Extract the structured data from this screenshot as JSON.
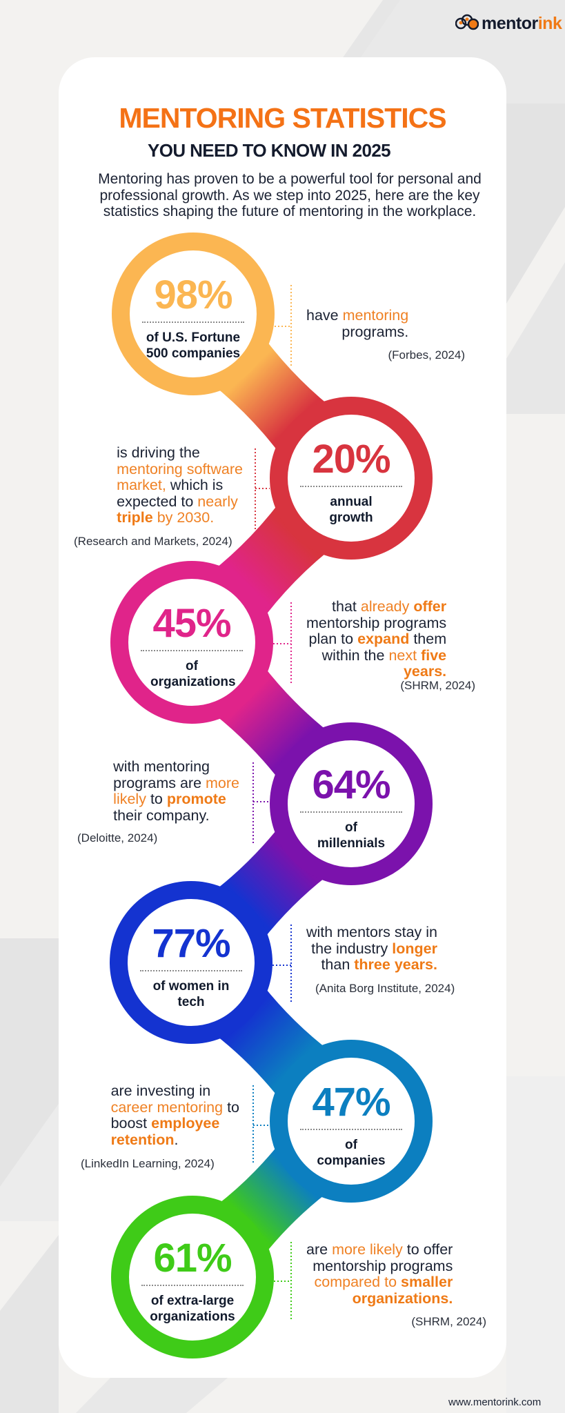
{
  "logo": {
    "text_main": "mentor",
    "text_accent": "ink"
  },
  "header": {
    "title": "MENTORING STATISTICS",
    "subtitle": "YOU NEED TO KNOW IN 2025",
    "intro": "Mentoring has proven to be a powerful tool for personal and professional growth. As we step into 2025, here are the key statistics shaping the future of mentoring in the workplace."
  },
  "colors": {
    "highlight": "#ef7a16",
    "text": "#141b2d",
    "title": "#f47216"
  },
  "stats": [
    {
      "percent": "98%",
      "label": "of U.S. Fortune 500 companies",
      "color": "#fbb652",
      "text_lines": [
        [
          {
            "t": "have "
          },
          {
            "t": "mentoring",
            "s": "o"
          }
        ],
        [
          {
            "t": "programs."
          }
        ]
      ],
      "source": "(Forbes, 2024)"
    },
    {
      "percent": "20%",
      "label": "annual growth",
      "color": "#d8343f",
      "text_lines": [
        [
          {
            "t": "is driving the"
          }
        ],
        [
          {
            "t": "mentoring software",
            "s": "o"
          }
        ],
        [
          {
            "t": "market,",
            "s": "o"
          },
          {
            "t": " which is"
          }
        ],
        [
          {
            "t": "expected to "
          },
          {
            "t": "nearly",
            "s": "o"
          }
        ],
        [
          {
            "t": "triple",
            "s": "ob"
          },
          {
            "t": " by 2030.",
            "s": "o"
          }
        ]
      ],
      "source": "(Research and Markets, 2024)"
    },
    {
      "percent": "45%",
      "label": "of organizations",
      "color": "#e0248a",
      "text_lines": [
        [
          {
            "t": "that "
          },
          {
            "t": "already",
            "s": "o"
          },
          {
            "t": " "
          },
          {
            "t": "offer",
            "s": "ob"
          }
        ],
        [
          {
            "t": "mentorship programs"
          }
        ],
        [
          {
            "t": "plan to "
          },
          {
            "t": "expand",
            "s": "ob"
          },
          {
            "t": " them"
          }
        ],
        [
          {
            "t": "within the "
          },
          {
            "t": "next",
            "s": "o"
          },
          {
            "t": " "
          },
          {
            "t": "five",
            "s": "ob"
          }
        ],
        [
          {
            "t": "years.",
            "s": "ob"
          }
        ]
      ],
      "source": "(SHRM, 2024)"
    },
    {
      "percent": "64%",
      "label": "of millennials",
      "color": "#7b12ac",
      "text_lines": [
        [
          {
            "t": "with mentoring"
          }
        ],
        [
          {
            "t": "programs are "
          },
          {
            "t": "more",
            "s": "o"
          }
        ],
        [
          {
            "t": "likely",
            "s": "o"
          },
          {
            "t": " to "
          },
          {
            "t": "promote",
            "s": "ob"
          }
        ],
        [
          {
            "t": "their company."
          }
        ]
      ],
      "source": "(Deloitte, 2024)"
    },
    {
      "percent": "77%",
      "label": "of women in tech",
      "color": "#1433d0",
      "text_lines": [
        [
          {
            "t": "with mentors stay in"
          }
        ],
        [
          {
            "t": "the industry "
          },
          {
            "t": "longer",
            "s": "ob"
          }
        ],
        [
          {
            "t": "than "
          },
          {
            "t": "three years.",
            "s": "ob"
          }
        ]
      ],
      "source": "(Anita Borg Institute, 2024)"
    },
    {
      "percent": "47%",
      "label": "of companies",
      "color": "#0c7fc0",
      "text_lines": [
        [
          {
            "t": "are investing in"
          }
        ],
        [
          {
            "t": "career mentoring",
            "s": "o"
          },
          {
            "t": " to"
          }
        ],
        [
          {
            "t": "boost "
          },
          {
            "t": "employee",
            "s": "ob"
          }
        ],
        [
          {
            "t": "retention",
            "s": "ob"
          },
          {
            "t": "."
          }
        ]
      ],
      "source": "(LinkedIn Learning, 2024)"
    },
    {
      "percent": "61%",
      "label": "of extra-large organizations",
      "color": "#3fcb18",
      "text_lines": [
        [
          {
            "t": "are "
          },
          {
            "t": "more likely",
            "s": "o"
          },
          {
            "t": " to offer"
          }
        ],
        [
          {
            "t": "mentorship programs"
          }
        ],
        [
          {
            "t": "compared to",
            "s": "o"
          },
          {
            "t": " "
          },
          {
            "t": "smaller",
            "s": "ob"
          }
        ],
        [
          {
            "t": "organizations.",
            "s": "ob"
          }
        ]
      ],
      "source": "(SHRM, 2024)"
    }
  ],
  "footer": {
    "url": "www.mentorink.com"
  }
}
